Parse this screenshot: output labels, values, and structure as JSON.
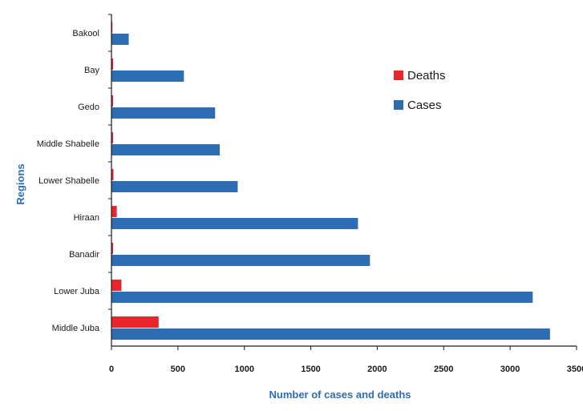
{
  "chart_data": {
    "type": "bar",
    "orientation": "horizontal",
    "categories": [
      "Middle Juba",
      "Lower Juba",
      "Banadir",
      "Hiraan",
      "Lower Shabelle",
      "Middle Shabelle",
      "Gedo",
      "Bay",
      "Bakool"
    ],
    "series": [
      {
        "name": "Deaths",
        "color": "#e8262b",
        "values": [
          355,
          75,
          8,
          40,
          15,
          5,
          2,
          2,
          0
        ]
      },
      {
        "name": "Cases",
        "color": "#2e6db3",
        "values": [
          3300,
          3170,
          1945,
          1855,
          950,
          815,
          780,
          545,
          130
        ]
      }
    ],
    "xlabel": "Number of cases and deaths",
    "ylabel": "Regions",
    "xlim": [
      0,
      3500
    ],
    "xticks": [
      "0",
      "500",
      "1000",
      "1500",
      "2000",
      "2500",
      "3000",
      "3500"
    ],
    "grid": false,
    "legend_position": "top-right",
    "colors": {
      "axis": "#1a1a1a",
      "title": "#2e6db3"
    }
  }
}
